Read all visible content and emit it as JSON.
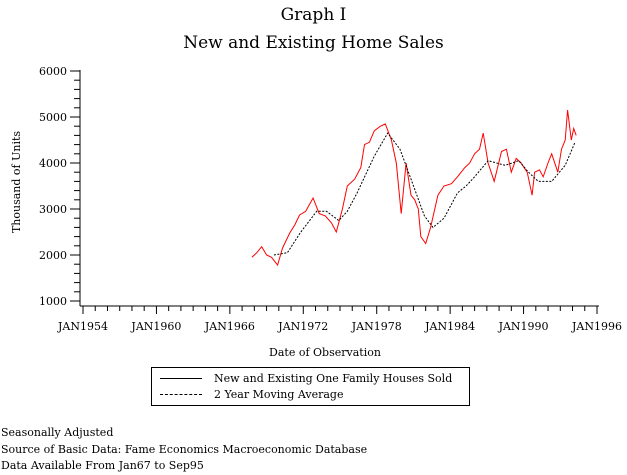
{
  "chart_data": {
    "type": "line",
    "title": "Graph I",
    "subtitle": "New and Existing Home Sales",
    "xlabel": "Date of Observation",
    "ylabel": "Thousand of Units",
    "xlim": [
      1954,
      1996
    ],
    "ylim": [
      1000,
      6000
    ],
    "x_ticks": [
      1954,
      1960,
      1966,
      1972,
      1978,
      1984,
      1990,
      1996
    ],
    "x_tick_labels": [
      "JAN1954",
      "JAN1960",
      "JAN1966",
      "JAN1972",
      "JAN1978",
      "JAN1984",
      "JAN1990",
      "JAN1996"
    ],
    "y_ticks": [
      1000,
      2000,
      3000,
      4000,
      5000,
      6000
    ],
    "y_tick_labels": [
      "1000",
      "2000",
      "3000",
      "4000",
      "5000",
      "6000"
    ],
    "grid": false,
    "legend_position": "bottom",
    "series": [
      {
        "name": "New and Existing One Family Houses Sold",
        "color": "#ff0000",
        "style": "solid",
        "x": [
          1967.8,
          1968.2,
          1968.6,
          1969.0,
          1969.4,
          1969.9,
          1970.3,
          1970.9,
          1971.3,
          1971.7,
          1972.2,
          1972.8,
          1973.3,
          1973.8,
          1974.3,
          1974.7,
          1975.2,
          1975.6,
          1976.2,
          1976.7,
          1977.0,
          1977.4,
          1977.8,
          1978.3,
          1978.7,
          1979.2,
          1979.6,
          1980.0,
          1980.4,
          1980.8,
          1981.1,
          1981.4,
          1981.6,
          1982.0,
          1982.4,
          1983.0,
          1983.5,
          1984.1,
          1984.6,
          1985.2,
          1985.6,
          1986.0,
          1986.4,
          1986.7,
          1987.1,
          1987.6,
          1988.2,
          1988.6,
          1989.0,
          1989.4,
          1989.8,
          1990.3,
          1990.7,
          1990.9,
          1991.3,
          1991.6,
          1992.0,
          1992.3,
          1992.8,
          1993.1,
          1993.4,
          1993.6,
          1993.9,
          1994.1,
          1994.3
        ],
        "y": [
          1950,
          2050,
          2180,
          2000,
          1950,
          1780,
          2150,
          2480,
          2650,
          2870,
          2950,
          3240,
          2900,
          2850,
          2700,
          2500,
          3000,
          3500,
          3650,
          3900,
          4400,
          4450,
          4700,
          4800,
          4850,
          4500,
          4000,
          2900,
          4000,
          3300,
          3200,
          3000,
          2400,
          2250,
          2600,
          3300,
          3500,
          3550,
          3700,
          3900,
          4000,
          4200,
          4300,
          4650,
          4000,
          3600,
          4250,
          4300,
          3800,
          4100,
          4000,
          3800,
          3300,
          3800,
          3850,
          3700,
          4000,
          4200,
          3800,
          4300,
          4500,
          5150,
          4500,
          4750,
          4600
        ]
      },
      {
        "name": "2 Year Moving Average",
        "color": "#000000",
        "style": "dashed",
        "x": [
          1969.6,
          1970.7,
          1971.8,
          1973.1,
          1973.9,
          1974.9,
          1975.6,
          1976.4,
          1977.1,
          1977.8,
          1978.9,
          1979.9,
          1980.8,
          1981.9,
          1982.6,
          1983.5,
          1984.6,
          1985.3,
          1986.0,
          1987.1,
          1988.5,
          1989.6,
          1990.4,
          1991.2,
          1992.3,
          1993.4,
          1994.2
        ],
        "y": [
          2000,
          2050,
          2500,
          2950,
          2950,
          2750,
          2950,
          3350,
          3750,
          4150,
          4650,
          4300,
          3650,
          2850,
          2600,
          2800,
          3350,
          3500,
          3700,
          4050,
          3950,
          4050,
          3800,
          3600,
          3600,
          3950,
          4450
        ]
      }
    ]
  },
  "notes": [
    "Seasonally Adjusted",
    "Source of Basic Data: Fame Economics Macroeconomic Database",
    "Data Available From Jan67 to Sep95"
  ]
}
